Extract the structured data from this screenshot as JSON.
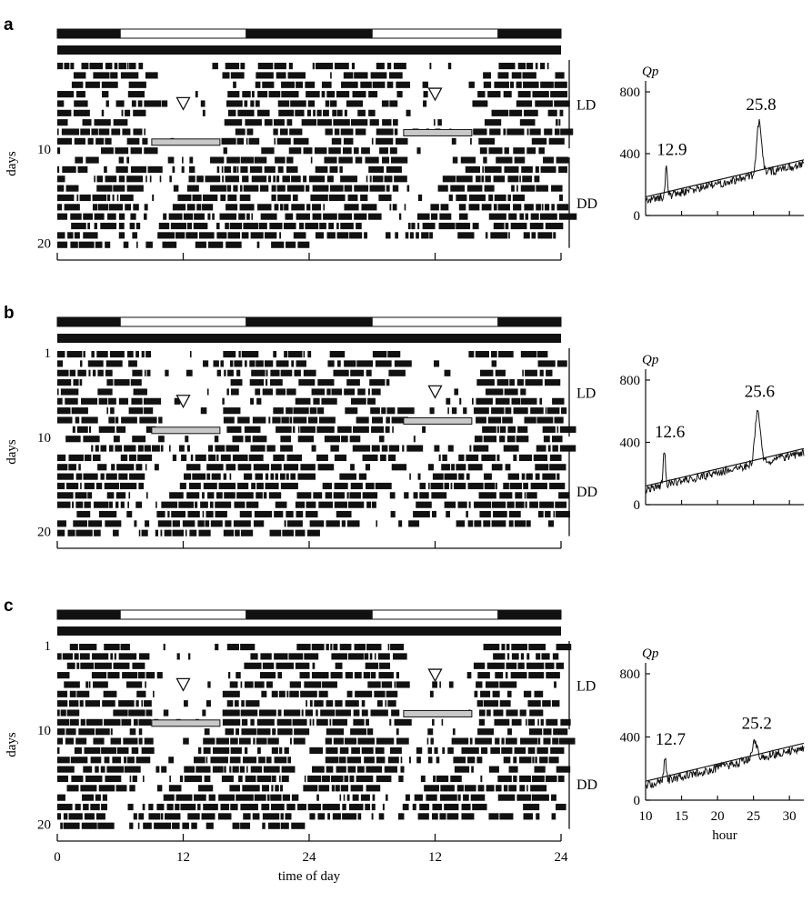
{
  "figure": {
    "x_ticks": [
      "0",
      "12",
      "24",
      "12",
      "24"
    ],
    "x_axis_label": "time of day",
    "periodogram_x_label": "hour",
    "periodogram_y_label": "Qp"
  },
  "chart_data": [
    {
      "type": "actogram",
      "panel": "a",
      "ylabel": "days",
      "y_ticks": [
        "10",
        "20"
      ],
      "conditions": [
        {
          "label": "LD",
          "days": [
            1,
            10
          ]
        },
        {
          "label": "DD",
          "days": [
            10,
            20
          ]
        }
      ],
      "light_dark_bar": [
        {
          "phase": "dark",
          "from": 0,
          "to": 6
        },
        {
          "phase": "light",
          "from": 6,
          "to": 18
        },
        {
          "phase": "dark",
          "from": 18,
          "to": 30
        },
        {
          "phase": "light",
          "from": 30,
          "to": 42
        },
        {
          "phase": "dark",
          "from": 42,
          "to": 48
        }
      ],
      "x_range_hours": [
        0,
        48
      ],
      "days_recorded": 20,
      "markers": [
        {
          "shape": "triangle-down",
          "hour": 12,
          "day": 5
        },
        {
          "shape": "triangle-down",
          "hour": 36,
          "day": 4
        }
      ],
      "highlight_bars": [
        {
          "from_hour": 9,
          "to_hour": 15.5,
          "day": 9
        },
        {
          "from_hour": 33,
          "to_hour": 39.5,
          "day": 8
        }
      ]
    },
    {
      "type": "line",
      "panel": "a",
      "ylabel": "Qp",
      "ylim": [
        0,
        800
      ],
      "y_ticks": [
        0,
        400,
        800
      ],
      "x_range": [
        10,
        32
      ],
      "peaks": [
        {
          "x": 12.9,
          "y": 310,
          "label": "12.9"
        },
        {
          "x": 25.8,
          "y": 600,
          "label": "25.8"
        }
      ],
      "significance_line": [
        {
          "x": 10,
          "y": 120
        },
        {
          "x": 32,
          "y": 360
        }
      ]
    },
    {
      "type": "actogram",
      "panel": "b",
      "ylabel": "days",
      "y_ticks": [
        "1",
        "10",
        "20"
      ],
      "conditions": [
        {
          "label": "LD",
          "days": [
            1,
            10
          ]
        },
        {
          "label": "DD",
          "days": [
            10,
            20
          ]
        }
      ],
      "light_dark_bar": [
        {
          "phase": "dark",
          "from": 0,
          "to": 6
        },
        {
          "phase": "light",
          "from": 6,
          "to": 18
        },
        {
          "phase": "dark",
          "from": 18,
          "to": 30
        },
        {
          "phase": "light",
          "from": 30,
          "to": 42
        },
        {
          "phase": "dark",
          "from": 42,
          "to": 48
        }
      ],
      "x_range_hours": [
        0,
        48
      ],
      "days_recorded": 20,
      "markers": [
        {
          "shape": "triangle-down",
          "hour": 12,
          "day": 6
        },
        {
          "shape": "triangle-down",
          "hour": 36,
          "day": 5
        }
      ],
      "highlight_bars": [
        {
          "from_hour": 9,
          "to_hour": 15.5,
          "day": 9
        },
        {
          "from_hour": 33,
          "to_hour": 39.5,
          "day": 8
        }
      ]
    },
    {
      "type": "line",
      "panel": "b",
      "ylabel": "Qp",
      "ylim": [
        0,
        800
      ],
      "y_ticks": [
        0,
        400,
        800
      ],
      "x_range": [
        10,
        32
      ],
      "peaks": [
        {
          "x": 12.6,
          "y": 350,
          "label": "12.6"
        },
        {
          "x": 25.6,
          "y": 610,
          "label": "25.6"
        }
      ],
      "significance_line": [
        {
          "x": 10,
          "y": 120
        },
        {
          "x": 32,
          "y": 360
        }
      ]
    },
    {
      "type": "actogram",
      "panel": "c",
      "ylabel": "days",
      "y_ticks": [
        "1",
        "10",
        "20"
      ],
      "conditions": [
        {
          "label": "LD",
          "days": [
            1,
            10
          ]
        },
        {
          "label": "DD",
          "days": [
            10,
            20
          ]
        }
      ],
      "light_dark_bar": [
        {
          "phase": "dark",
          "from": 0,
          "to": 6
        },
        {
          "phase": "light",
          "from": 6,
          "to": 18
        },
        {
          "phase": "dark",
          "from": 18,
          "to": 30
        },
        {
          "phase": "light",
          "from": 30,
          "to": 42
        },
        {
          "phase": "dark",
          "from": 42,
          "to": 48
        }
      ],
      "x_range_hours": [
        0,
        48
      ],
      "days_recorded": 20,
      "markers": [
        {
          "shape": "triangle-down",
          "hour": 12,
          "day": 5
        },
        {
          "shape": "triangle-down",
          "hour": 36,
          "day": 4
        }
      ],
      "highlight_bars": [
        {
          "from_hour": 9,
          "to_hour": 15.5,
          "day": 9
        },
        {
          "from_hour": 33,
          "to_hour": 39.5,
          "day": 8
        }
      ]
    },
    {
      "type": "line",
      "panel": "c",
      "ylabel": "Qp",
      "xlabel": "hour",
      "ylim": [
        0,
        800
      ],
      "y_ticks": [
        0,
        400,
        800
      ],
      "x_range": [
        10,
        32
      ],
      "x_ticks": [
        10,
        15,
        20,
        25,
        30
      ],
      "peaks": [
        {
          "x": 12.7,
          "y": 270,
          "label": "12.7"
        },
        {
          "x": 25.2,
          "y": 370,
          "label": "25.2"
        }
      ],
      "significance_line": [
        {
          "x": 10,
          "y": 120
        },
        {
          "x": 32,
          "y": 360
        }
      ]
    }
  ]
}
